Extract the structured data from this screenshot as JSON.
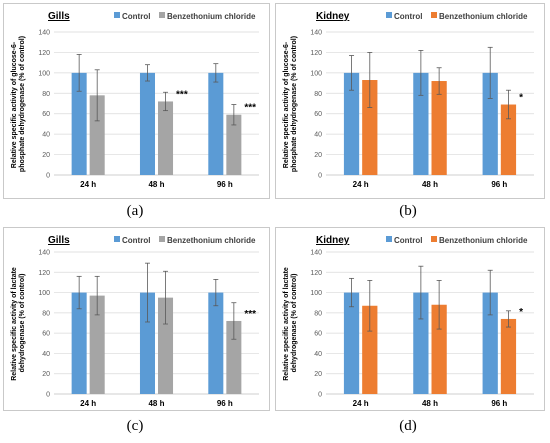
{
  "chart_data": [
    {
      "type": "bar",
      "panel": "(a)",
      "title": "Gills",
      "ylabel": "Relative specific activity of glucose-6-phosphate dehydrogenase (% of control)",
      "ylabel_lines": [
        "Relative specific activity of glucose-6-",
        "phosphate dehydrogenase (% of control)"
      ],
      "ylim": [
        0,
        140
      ],
      "yticks": [
        "0",
        "20",
        "40",
        "60",
        "80",
        "100",
        "120",
        "140"
      ],
      "categories": [
        "24 h",
        "48 h",
        "96 h"
      ],
      "series": [
        {
          "name": "Control",
          "color": "#5b9bd5",
          "values": [
            100,
            100,
            100
          ],
          "errors": [
            18,
            8,
            9
          ]
        },
        {
          "name": "Benzethonium chloride",
          "color": "#a5a5a5",
          "values": [
            78,
            72,
            59
          ],
          "errors": [
            25,
            9,
            10
          ]
        }
      ],
      "annotations": [
        "",
        "***",
        "***"
      ],
      "grid": true,
      "legend": "top"
    },
    {
      "type": "bar",
      "panel": "(b)",
      "title": "Kidney",
      "ylabel": "Relative specific activity of glucose-6-phosphate dehydrogenase (% of control)",
      "ylabel_lines": [
        "Relative specific activity of glucose-6-",
        "phosphate dehydrogenase (% of control)"
      ],
      "ylim": [
        0,
        140
      ],
      "yticks": [
        "0",
        "20",
        "40",
        "60",
        "80",
        "100",
        "120",
        "140"
      ],
      "categories": [
        "24 h",
        "48 h",
        "96 h"
      ],
      "series": [
        {
          "name": "Control",
          "color": "#5b9bd5",
          "values": [
            100,
            100,
            100
          ],
          "errors": [
            17,
            22,
            25
          ]
        },
        {
          "name": "Benzethonium chloride",
          "color": "#ed7d31",
          "values": [
            93,
            92,
            69
          ],
          "errors": [
            27,
            13,
            14
          ]
        }
      ],
      "annotations": [
        "",
        "",
        "*"
      ],
      "grid": true,
      "legend": "top"
    },
    {
      "type": "bar",
      "panel": "(c)",
      "title": "Gills",
      "ylabel": "Relative specific activity of lactate dehydrogenase (% of control)",
      "ylabel_lines": [
        "Relative specific activity of lactate",
        "dehydrogenase (% of control)"
      ],
      "ylim": [
        0,
        140
      ],
      "yticks": [
        "0",
        "20",
        "40",
        "60",
        "80",
        "100",
        "120",
        "140"
      ],
      "categories": [
        "24 h",
        "48 h",
        "96 h"
      ],
      "series": [
        {
          "name": "Control",
          "color": "#5b9bd5",
          "values": [
            100,
            100,
            100
          ],
          "errors": [
            16,
            29,
            13
          ]
        },
        {
          "name": "Benzethonium chloride",
          "color": "#a5a5a5",
          "values": [
            97,
            95,
            72
          ],
          "errors": [
            19,
            26,
            18
          ]
        }
      ],
      "annotations": [
        "",
        "",
        "***"
      ],
      "grid": true,
      "legend": "top"
    },
    {
      "type": "bar",
      "panel": "(d)",
      "title": "Kidney",
      "ylabel": "Relative specific activity of lactate dehydrogenase (% of control)",
      "ylabel_lines": [
        "Relative specific activity of lactate",
        "dehydrogenase (% of control)"
      ],
      "ylim": [
        0,
        140
      ],
      "yticks": [
        "0",
        "20",
        "40",
        "60",
        "80",
        "100",
        "120",
        "140"
      ],
      "categories": [
        "24 h",
        "48 h",
        "96 h"
      ],
      "series": [
        {
          "name": "Control",
          "color": "#5b9bd5",
          "values": [
            100,
            100,
            100
          ],
          "errors": [
            14,
            26,
            22
          ]
        },
        {
          "name": "Benzethonium chloride",
          "color": "#ed7d31",
          "values": [
            87,
            88,
            74
          ],
          "errors": [
            25,
            24,
            8
          ]
        }
      ],
      "annotations": [
        "",
        "",
        "*"
      ],
      "grid": true,
      "legend": "top"
    }
  ]
}
